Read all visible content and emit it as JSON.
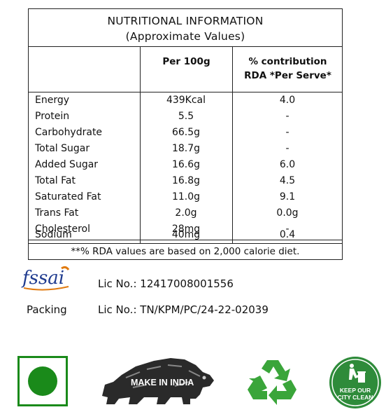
{
  "table": {
    "title_line1": "NUTRITIONAL INFORMATION",
    "title_line2": "(Approximate Values)",
    "col_per100": "Per 100g",
    "col_rda_line1": "% contribution",
    "col_rda_line2": "RDA *Per Serve*",
    "rows": [
      {
        "name": "Energy",
        "per100": "439Kcal",
        "rda": "4.0"
      },
      {
        "name": "Protein",
        "per100": "5.5",
        "rda": "-"
      },
      {
        "name": "Carbohydrate",
        "per100": "66.5g",
        "rda": "-"
      },
      {
        "name": "Total Sugar",
        "per100": "18.7g",
        "rda": "-"
      },
      {
        "name": "Added Sugar",
        "per100": "16.6g",
        "rda": "6.0"
      },
      {
        "name": "Total Fat",
        "per100": "16.8g",
        "rda": "4.5"
      },
      {
        "name": "Saturated Fat",
        "per100": "11.0g",
        "rda": "9.1"
      },
      {
        "name": "Trans Fat",
        "per100": "2.0g",
        "rda": "0.0g"
      },
      {
        "name": "Cholesterol",
        "per100": "28mg",
        "rda": "-"
      },
      {
        "name": "Sodium",
        "per100": "40mg",
        "rda": "0.4"
      }
    ],
    "footnote": "**% RDA values are based on 2,000 calorie diet."
  },
  "fssai": {
    "logo_text": "fssai",
    "lic_label": "Lic No.:",
    "lic_number": "12417008001556"
  },
  "packing": {
    "label": "Packing",
    "lic_label": "Lic No.:",
    "lic_number": "TN/KPM/PC/24-22-02039"
  },
  "badges": {
    "veg_color": "#1a8a1a",
    "make_in_india_text": "MAKE IN INDIA",
    "recycle_color": "#3aa53a",
    "city_clean_line1": "KEEP OUR",
    "city_clean_line2": "CITY CLEAN",
    "city_clean_color": "#2e8b3a"
  }
}
